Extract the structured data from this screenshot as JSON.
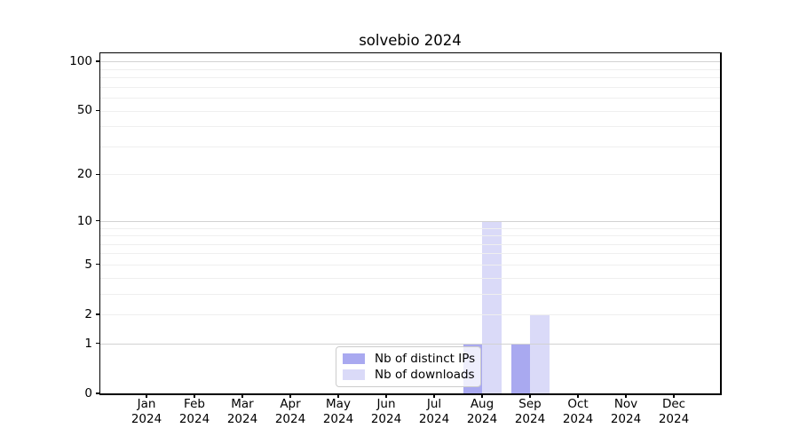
{
  "chart_data": {
    "type": "bar",
    "title": "solvebio 2024",
    "x_tick_year": "2024",
    "categories": [
      "Jan",
      "Feb",
      "Mar",
      "Apr",
      "May",
      "Jun",
      "Jul",
      "Aug",
      "Sep",
      "Oct",
      "Nov",
      "Dec"
    ],
    "series": [
      {
        "name": "Nb of distinct IPs",
        "color": "#a9a9f0",
        "values": [
          0,
          0,
          0,
          0,
          0,
          0,
          0,
          1,
          1,
          0,
          0,
          0
        ]
      },
      {
        "name": "Nb of downloads",
        "color": "#dadaf8",
        "values": [
          0,
          0,
          0,
          0,
          0,
          0,
          0,
          10,
          2,
          0,
          0,
          0
        ]
      }
    ],
    "y_ticks": [
      0,
      1,
      2,
      5,
      10,
      20,
      50,
      100
    ],
    "y_scale": "log10(1+v)",
    "ylim": [
      0,
      112
    ],
    "grid": {
      "major_values": [
        1,
        10,
        100
      ],
      "minor_values": [
        2,
        3,
        4,
        5,
        6,
        7,
        8,
        9,
        20,
        30,
        40,
        50,
        60,
        70,
        80,
        90
      ],
      "major_color": "#d2d2d2",
      "minor_color": "#efefef"
    },
    "legend": {
      "position": "lower center"
    },
    "axis_color": "#000000"
  }
}
